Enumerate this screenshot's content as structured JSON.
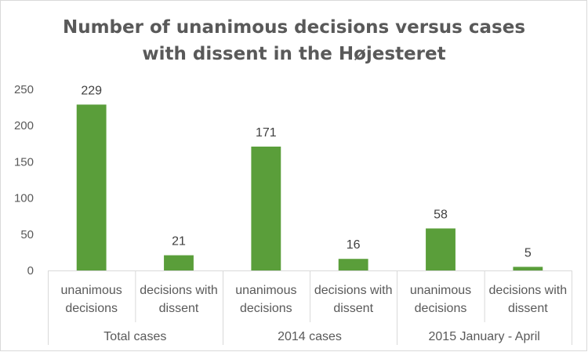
{
  "chart_data": {
    "type": "bar",
    "title_line1": "Number of unanimous decisions versus cases",
    "title_line2": "with dissent in the Højesteret",
    "groups": [
      {
        "label": "Total cases",
        "categories": [
          {
            "line1": "unanimous",
            "line2": "decisions",
            "value": 229
          },
          {
            "line1": "decisions with",
            "line2": "dissent",
            "value": 21
          }
        ]
      },
      {
        "label": "2014 cases",
        "categories": [
          {
            "line1": "unanimous",
            "line2": "decisions",
            "value": 171
          },
          {
            "line1": "decisions with",
            "line2": "dissent",
            "value": 16
          }
        ]
      },
      {
        "label": "2015 January - April",
        "categories": [
          {
            "line1": "unanimous",
            "line2": "decisions",
            "value": 58
          },
          {
            "line1": "decisions with",
            "line2": "dissent",
            "value": 5
          }
        ]
      }
    ],
    "ylim": [
      0,
      250
    ],
    "yticks": [
      0,
      50,
      100,
      150,
      200,
      250
    ],
    "bar_color": "#5a9e3a",
    "grid": false,
    "data_labels": true
  }
}
